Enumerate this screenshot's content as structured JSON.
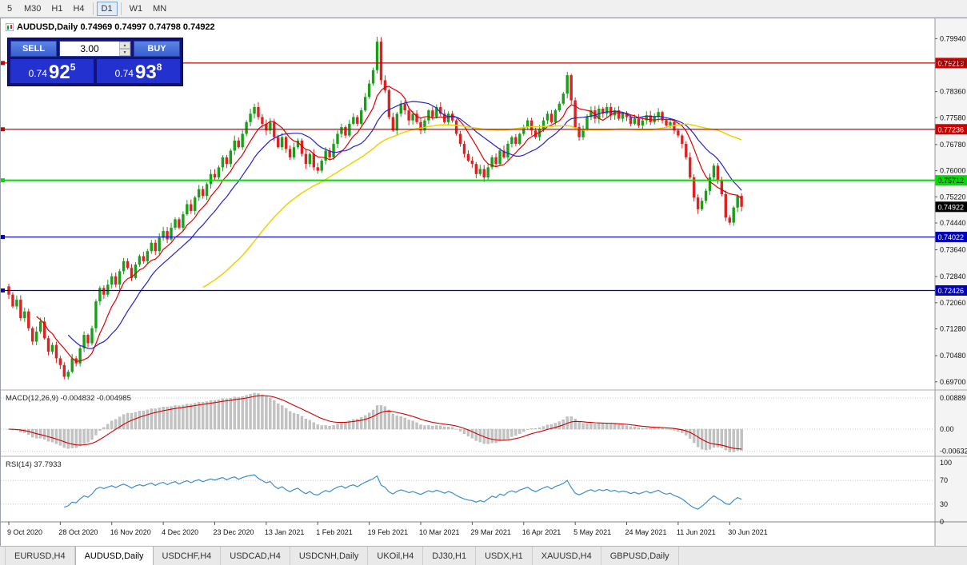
{
  "toolbar": {
    "timeframes": [
      "5",
      "M30",
      "H1",
      "H4",
      "D1",
      "W1",
      "MN"
    ],
    "active": "D1"
  },
  "chart": {
    "title": "AUDUSD,Daily 0.74969 0.74997 0.74798 0.74922",
    "macd_label": "MACD(12,26,9) -0.004832 -0.004985",
    "rsi_label": "RSI(14) 37.7933"
  },
  "trade_panel": {
    "sell_label": "SELL",
    "buy_label": "BUY",
    "volume": "3.00",
    "sell_price": {
      "prefix": "0.74",
      "big": "92",
      "sup": "5"
    },
    "buy_price": {
      "prefix": "0.74",
      "big": "93",
      "sup": "8"
    }
  },
  "tabs": [
    {
      "label": "EURUSD,H4",
      "active": false
    },
    {
      "label": "AUDUSD,Daily",
      "active": true
    },
    {
      "label": "USDCHF,H4",
      "active": false
    },
    {
      "label": "USDCAD,H4",
      "active": false
    },
    {
      "label": "USDCNH,Daily",
      "active": false
    },
    {
      "label": "UKOil,H4",
      "active": false
    },
    {
      "label": "DJ30,H1",
      "active": false
    },
    {
      "label": "USDX,H1",
      "active": false
    },
    {
      "label": "XAUUSD,H4",
      "active": false
    },
    {
      "label": "GBPUSD,Daily",
      "active": false
    }
  ],
  "chart_data": {
    "type": "candlestick",
    "symbol": "AUDUSD",
    "timeframe": "Daily",
    "price_axis_labels": [
      "0.79940",
      "0.79220",
      "0.78360",
      "0.77580",
      "0.76780",
      "0.76000",
      "0.75220",
      "0.74440",
      "0.73640",
      "0.72840",
      "0.72060",
      "0.71280",
      "0.70480",
      "0.69700"
    ],
    "x_labels": [
      "9 Oct 2020",
      "28 Oct 2020",
      "16 Nov 2020",
      "4 Dec 2020",
      "23 Dec 2020",
      "13 Jan 2021",
      "1 Feb 2021",
      "19 Feb 2021",
      "10 Mar 2021",
      "29 Mar 2021",
      "16 Apr 2021",
      "5 May 2021",
      "24 May 2021",
      "11 Jun 2021",
      "30 Jun 2021"
    ],
    "x_label_step": 13,
    "levels": [
      {
        "price": 0.79213,
        "label": "0.79213",
        "color": "#cc0000",
        "text": "#ffffff",
        "width": 1.2
      },
      {
        "price": 0.77236,
        "label": "0.77236",
        "color": "#cc0000",
        "text": "#ffffff",
        "width": 1.2
      },
      {
        "price": 0.75712,
        "label": "0.75712",
        "color": "#00dd00",
        "text": "#000000",
        "width": 2
      },
      {
        "price": 0.74022,
        "label": "0.74022",
        "color": "#0000bb",
        "text": "#ffffff",
        "width": 1.2
      },
      {
        "price": 0.72426,
        "label": "0.72426",
        "color": "#0000bb",
        "text": "#ffffff",
        "width": 1.2
      }
    ],
    "current_price": {
      "value": 0.74922,
      "label": "0.74922"
    },
    "closes": [
      0.723,
      0.7195,
      0.7215,
      0.716,
      0.718,
      0.713,
      0.709,
      0.712,
      0.715,
      0.71,
      0.706,
      0.708,
      0.704,
      0.702,
      0.6985,
      0.7,
      0.704,
      0.7025,
      0.707,
      0.711,
      0.7085,
      0.713,
      0.721,
      0.725,
      0.723,
      0.726,
      0.7285,
      0.726,
      0.73,
      0.733,
      0.731,
      0.728,
      0.732,
      0.7345,
      0.733,
      0.736,
      0.7385,
      0.736,
      0.74,
      0.742,
      0.7395,
      0.743,
      0.7455,
      0.743,
      0.747,
      0.75,
      0.748,
      0.752,
      0.7545,
      0.7525,
      0.756,
      0.759,
      0.758,
      0.761,
      0.764,
      0.762,
      0.766,
      0.769,
      0.767,
      0.771,
      0.7745,
      0.777,
      0.779,
      0.776,
      0.774,
      0.772,
      0.7745,
      0.77,
      0.767,
      0.77,
      0.7665,
      0.764,
      0.767,
      0.769,
      0.765,
      0.762,
      0.765,
      0.761,
      0.76,
      0.763,
      0.766,
      0.764,
      0.768,
      0.771,
      0.773,
      0.7705,
      0.774,
      0.776,
      0.774,
      0.778,
      0.782,
      0.786,
      0.79,
      0.7985,
      0.787,
      0.784,
      0.776,
      0.772,
      0.777,
      0.78,
      0.778,
      0.775,
      0.777,
      0.7745,
      0.772,
      0.775,
      0.778,
      0.776,
      0.779,
      0.777,
      0.7745,
      0.777,
      0.775,
      0.771,
      0.768,
      0.765,
      0.763,
      0.762,
      0.759,
      0.7605,
      0.758,
      0.761,
      0.764,
      0.762,
      0.766,
      0.764,
      0.768,
      0.77,
      0.768,
      0.771,
      0.773,
      0.775,
      0.772,
      0.77,
      0.7725,
      0.775,
      0.777,
      0.7745,
      0.778,
      0.78,
      0.783,
      0.7885,
      0.781,
      0.773,
      0.77,
      0.7725,
      0.776,
      0.778,
      0.7755,
      0.7785,
      0.777,
      0.779,
      0.7765,
      0.778,
      0.7755,
      0.777,
      0.776,
      0.774,
      0.7755,
      0.7735,
      0.775,
      0.7765,
      0.7745,
      0.776,
      0.7775,
      0.775,
      0.7735,
      0.7745,
      0.772,
      0.7705,
      0.768,
      0.764,
      0.758,
      0.752,
      0.7485,
      0.751,
      0.754,
      0.758,
      0.7615,
      0.757,
      0.753,
      0.746,
      0.7445,
      0.749,
      0.7525,
      0.74922
    ],
    "moving_averages": [
      {
        "period": 8,
        "color": "#dd0000"
      },
      {
        "period": 16,
        "color": "#2222cc"
      },
      {
        "period": 50,
        "color": "#f2cf00"
      }
    ],
    "macd": {
      "params": [
        12,
        26,
        9
      ],
      "value": -0.004832,
      "signal": -0.004985,
      "axis_labels": [
        "0.00889",
        "0.00",
        "-0.00632"
      ],
      "axis_values": [
        0.00889,
        0,
        -0.00632
      ],
      "hist_color": "#c3c3c3",
      "signal_color": "#cc0000"
    },
    "rsi": {
      "period": 14,
      "value": 37.7933,
      "axis_labels": [
        "100",
        "70",
        "30",
        "0"
      ],
      "axis_values": [
        100,
        70,
        30,
        0
      ],
      "guides": [
        70,
        30
      ],
      "color": "#3c8dcc"
    },
    "candle_up_color": "#18a018",
    "candle_down_color": "#dd2222"
  }
}
